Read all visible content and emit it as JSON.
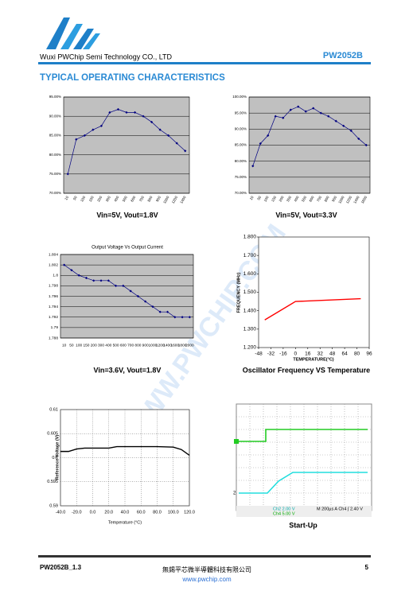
{
  "header": {
    "company": "Wuxi PWChip Semi Technology CO., LTD",
    "part": "PW2052B"
  },
  "section_title": "TYPICAL OPERATING CHARACTERISTICS",
  "watermark": "WWW.PWCHIP.COM",
  "chart_data": [
    {
      "type": "line",
      "caption": "Vin=5V, Vout=1.8V",
      "categories": [
        "10",
        "50",
        "100",
        "150",
        "200",
        "300",
        "400",
        "500",
        "600",
        "700",
        "800",
        "900",
        "1000",
        "1200",
        "1400"
      ],
      "values": [
        75,
        84,
        85,
        86.5,
        87.5,
        91,
        91.8,
        91,
        91,
        90,
        88.5,
        86.5,
        85,
        83,
        81
      ],
      "color": "#000080",
      "markers": true,
      "grid": true,
      "plot_background": "#c0c0c0",
      "ylim": [
        70,
        95
      ],
      "yticks": [
        {
          "value": 70,
          "label": "70.00%"
        },
        {
          "value": 75,
          "label": "75.00%"
        },
        {
          "value": 80,
          "label": "80.00%"
        },
        {
          "value": 85,
          "label": "85.00%"
        },
        {
          "value": 90,
          "label": "90.00%"
        },
        {
          "value": 95,
          "label": "95.00%"
        }
      ]
    },
    {
      "type": "line",
      "caption": "Vin=5V, Vout=3.3V",
      "categories": [
        "10",
        "50",
        "100",
        "150",
        "200",
        "300",
        "400",
        "500",
        "600",
        "700",
        "800",
        "900",
        "1000",
        "1200",
        "1400",
        "1600"
      ],
      "values": [
        78.5,
        85.5,
        88,
        94,
        93.5,
        96,
        97,
        95.5,
        96.5,
        95,
        94,
        92.5,
        91,
        89.5,
        87,
        85
      ],
      "color": "#000080",
      "markers": true,
      "grid": true,
      "plot_background": "#c0c0c0",
      "ylim": [
        70,
        100
      ],
      "yticks": [
        {
          "value": 70,
          "label": "70.00%"
        },
        {
          "value": 75,
          "label": "75.00%"
        },
        {
          "value": 80,
          "label": "80.00%"
        },
        {
          "value": 85,
          "label": "85.00%"
        },
        {
          "value": 90,
          "label": "90.00%"
        },
        {
          "value": 95,
          "label": "95.00%"
        },
        {
          "value": 100,
          "label": "100.00%"
        }
      ]
    },
    {
      "type": "line",
      "title": "Output Voltage Vs Output Current",
      "caption": "Vin=3.6V, Vout=1.8V",
      "categories": [
        "10",
        "50",
        "100",
        "150",
        "200",
        "300",
        "400",
        "500",
        "600",
        "700",
        "800",
        "900",
        "1000",
        "1200",
        "1400",
        "1600",
        "1800",
        "2000"
      ],
      "values": [
        1.802,
        1.801,
        1.8,
        1.7995,
        1.799,
        1.799,
        1.799,
        1.798,
        1.798,
        1.797,
        1.796,
        1.795,
        1.794,
        1.793,
        1.793,
        1.792,
        1.792,
        1.792
      ],
      "color": "#000080",
      "markers": true,
      "grid": true,
      "plot_background": "#c0c0c0",
      "ylim": [
        1.788,
        1.804
      ],
      "yticks": [
        1.788,
        1.79,
        1.792,
        1.794,
        1.796,
        1.798,
        1.8,
        1.802,
        1.804
      ]
    },
    {
      "type": "line",
      "caption": "Oscillator Frequency VS Temperature",
      "xlabel": "TEMPERATURE(°C)",
      "ylabel": "FREQUENCY (MHz)",
      "x": [
        -40,
        0,
        85
      ],
      "values": [
        1.35,
        1.45,
        1.465
      ],
      "color": "#ff0000",
      "markers": false,
      "grid": false,
      "xlim": [
        -48,
        96
      ],
      "xticks": [
        -48,
        -32,
        -16,
        0,
        16,
        32,
        48,
        64,
        80,
        96
      ],
      "ylim": [
        1.2,
        1.8
      ],
      "yticks": [
        {
          "value": 1.2,
          "label": "1.200"
        },
        {
          "value": 1.3,
          "label": "1.300"
        },
        {
          "value": 1.4,
          "label": "1.400"
        },
        {
          "value": 1.5,
          "label": "1.500"
        },
        {
          "value": 1.6,
          "label": "1.600"
        },
        {
          "value": 1.7,
          "label": "1.700"
        },
        {
          "value": 1.8,
          "label": "1.800"
        }
      ]
    },
    {
      "type": "line",
      "xlabel": "Temperature (°C)",
      "ylabel": "Reference Voltage (V)",
      "x": [
        -40,
        -30,
        -20,
        -10,
        0,
        20,
        30,
        40,
        60,
        80,
        100,
        110,
        120
      ],
      "values": [
        0.6013,
        0.6013,
        0.6018,
        0.602,
        0.602,
        0.602,
        0.6023,
        0.6023,
        0.6023,
        0.6023,
        0.6022,
        0.6017,
        0.6005
      ],
      "color": "#000000",
      "markers": false,
      "grid": true,
      "grid_style": "dotted",
      "xlim": [
        -40,
        120
      ],
      "xticks": [
        {
          "value": -40,
          "label": "-40.0"
        },
        {
          "value": -20,
          "label": "-20.0"
        },
        {
          "value": 0,
          "label": "0.0"
        },
        {
          "value": 20,
          "label": "20.0"
        },
        {
          "value": 40,
          "label": "40.0"
        },
        {
          "value": 60,
          "label": "60.0"
        },
        {
          "value": 80,
          "label": "80.0"
        },
        {
          "value": 100,
          "label": "100.0"
        },
        {
          "value": 120,
          "label": "120.0"
        }
      ],
      "ylim": [
        0.59,
        0.61
      ],
      "yticks": [
        0.59,
        0.595,
        0.6,
        0.605,
        0.61
      ]
    }
  ],
  "scope": {
    "caption": "Start-Up",
    "channel_label": "2",
    "ch2": "Ch2  2.00 V",
    "ch4": "Ch4  5.00 V",
    "timebase": "M 200µs  A  Ch4  ∫  2.40 V"
  },
  "footer": {
    "doc": "PW2052B_1.3",
    "company_cn": "無錫平芯微半導體科技有限公司",
    "website": "www.pwchip.com",
    "page": "5"
  }
}
